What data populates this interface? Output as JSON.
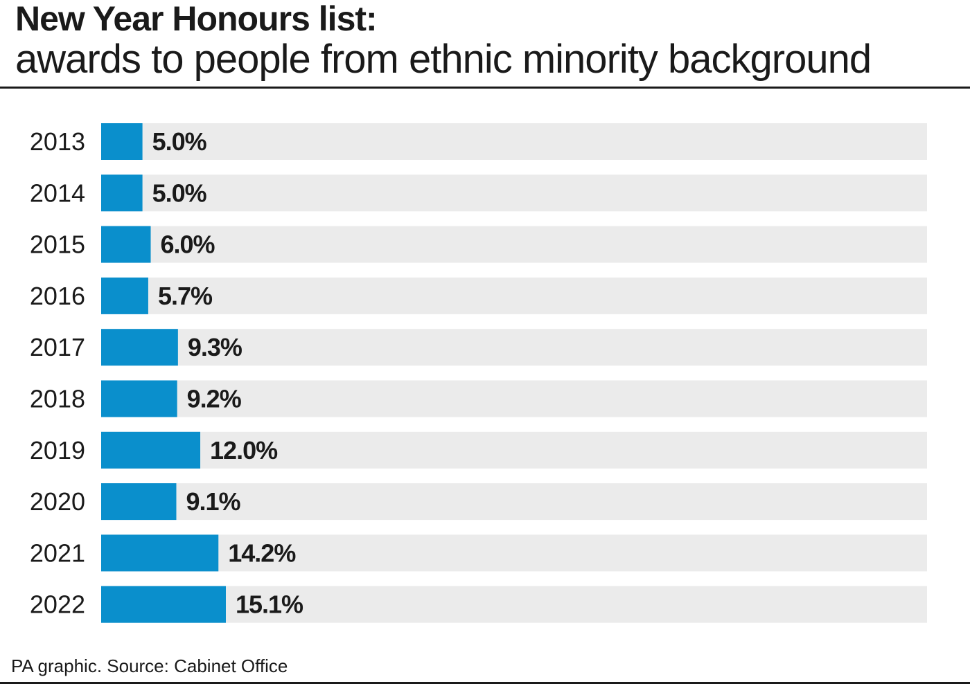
{
  "chart_data": {
    "type": "bar",
    "orientation": "horizontal",
    "title": "New Year Honours list:",
    "subtitle": "awards to people from ethnic minority background",
    "categories": [
      "2013",
      "2014",
      "2015",
      "2016",
      "2017",
      "2018",
      "2019",
      "2020",
      "2021",
      "2022"
    ],
    "values": [
      5.0,
      5.0,
      6.0,
      5.7,
      9.3,
      9.2,
      12.0,
      9.1,
      14.2,
      15.1
    ],
    "value_labels": [
      "5.0%",
      "5.0%",
      "6.0%",
      "5.7%",
      "9.3%",
      "9.2%",
      "12.0%",
      "9.1%",
      "14.2%",
      "15.1%"
    ],
    "xlim": [
      0,
      100
    ],
    "unit": "%",
    "grid": false,
    "legend": "none",
    "colors": {
      "bar": "#0a8fcc",
      "track": "#ebebeb",
      "text": "#1a1a1a"
    }
  },
  "source": "PA graphic. Source: Cabinet Office"
}
